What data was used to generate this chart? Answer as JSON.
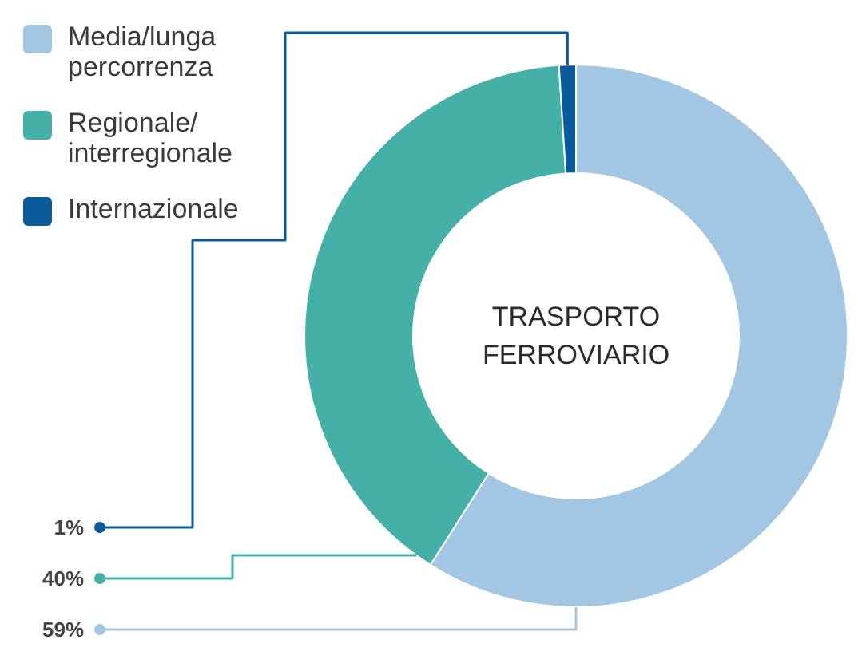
{
  "chart_data": {
    "type": "donut",
    "title": "TRASPORTO\nFERROVIARIO",
    "categories": [
      "Media/lunga\npercorrenza",
      "Regionale/\ninterregionale",
      "Internazionale"
    ],
    "values": [
      59,
      40,
      1
    ],
    "colors": [
      "#a3c6e2",
      "#44b0a8",
      "#0a5a9c"
    ],
    "value_labels": [
      "59%",
      "40%",
      "1%"
    ],
    "legend": "top left"
  }
}
